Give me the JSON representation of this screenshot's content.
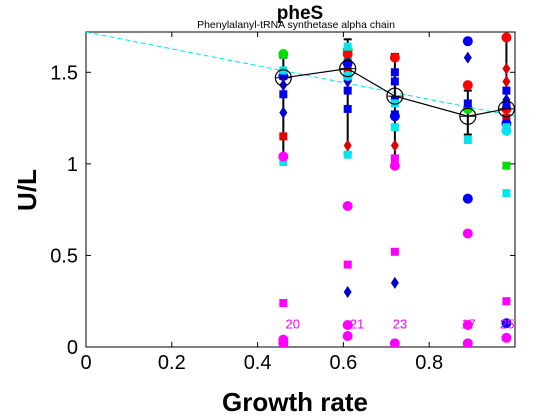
{
  "chart_data": {
    "type": "scatter",
    "title": "pheS",
    "subtitle": "Phenylalanyl-tRNA synthetase alpha chain",
    "xlabel": "Growth rate",
    "ylabel": "U/L",
    "xlim": [
      0,
      1.0
    ],
    "ylim": [
      0,
      1.72
    ],
    "x_ticks": [
      0,
      0.2,
      0.4,
      0.6,
      0.8
    ],
    "x_tick_labels": [
      "0",
      "0.2",
      "0.4",
      "0.6",
      "0.8"
    ],
    "y_ticks": [
      0,
      0.5,
      1,
      1.5
    ],
    "y_tick_labels": [
      "0",
      "0.5",
      "1",
      "1.5"
    ],
    "grid": false,
    "legend": "none",
    "trend_line": {
      "color": "#00e5ee",
      "style": "dashed",
      "points": [
        [
          0,
          1.72
        ],
        [
          1.0,
          1.26
        ]
      ]
    },
    "mean_line": {
      "color": "#000000",
      "x": [
        0.46,
        0.61,
        0.72,
        0.89,
        0.98
      ],
      "y": [
        1.47,
        1.52,
        1.37,
        1.26,
        1.3
      ],
      "error_low": [
        1.04,
        1.06,
        1.04,
        1.16,
        1.18
      ],
      "error_high": [
        1.58,
        1.68,
        1.6,
        1.4,
        1.7
      ]
    },
    "point_labels": [
      {
        "text": "20",
        "x": 0.465,
        "y": 0.1
      },
      {
        "text": "21",
        "x": 0.615,
        "y": 0.1
      },
      {
        "text": "23",
        "x": 0.715,
        "y": 0.1
      },
      {
        "text": "17",
        "x": 0.875,
        "y": 0.1
      },
      {
        "text": "25",
        "x": 0.965,
        "y": 0.1
      }
    ],
    "series": [
      {
        "marker": "circle",
        "color": "#00dd00",
        "points": [
          [
            0.46,
            1.6
          ],
          [
            0.61,
            1.62
          ],
          [
            0.89,
            1.3
          ]
        ]
      },
      {
        "marker": "square",
        "color": "#00dd00",
        "points": [
          [
            0.61,
            1.58
          ],
          [
            0.98,
            0.99
          ]
        ]
      },
      {
        "marker": "circle",
        "color": "#ff0000",
        "points": [
          [
            0.61,
            1.6
          ],
          [
            0.72,
            1.58
          ],
          [
            0.89,
            1.43
          ],
          [
            0.98,
            1.69
          ],
          [
            0.98,
            1.3
          ]
        ]
      },
      {
        "marker": "square",
        "color": "#dd0000",
        "points": [
          [
            0.46,
            1.15
          ],
          [
            0.61,
            1.52
          ],
          [
            0.98,
            1.25
          ]
        ]
      },
      {
        "marker": "diamond",
        "color": "#dd0000",
        "points": [
          [
            0.61,
            1.1
          ],
          [
            0.72,
            1.1
          ],
          [
            0.98,
            1.52
          ],
          [
            0.98,
            1.45
          ]
        ]
      },
      {
        "marker": "circle",
        "color": "#0000ff",
        "points": [
          [
            0.46,
            1.48
          ],
          [
            0.61,
            1.55
          ],
          [
            0.72,
            1.26
          ],
          [
            0.89,
            1.67
          ],
          [
            0.89,
            0.81
          ],
          [
            0.98,
            0.13
          ],
          [
            0.98,
            1.22
          ]
        ]
      },
      {
        "marker": "square",
        "color": "#0000ee",
        "points": [
          [
            0.46,
            1.48
          ],
          [
            0.46,
            1.38
          ],
          [
            0.61,
            1.47
          ],
          [
            0.61,
            1.4
          ],
          [
            0.61,
            1.3
          ],
          [
            0.72,
            1.5
          ],
          [
            0.72,
            1.45
          ],
          [
            0.72,
            1.35
          ],
          [
            0.72,
            1.27
          ],
          [
            0.89,
            1.33
          ],
          [
            0.98,
            1.4
          ],
          [
            0.98,
            1.32
          ]
        ]
      },
      {
        "marker": "diamond",
        "color": "#0000cc",
        "points": [
          [
            0.46,
            1.43
          ],
          [
            0.46,
            1.28
          ],
          [
            0.61,
            1.45
          ],
          [
            0.61,
            0.3
          ],
          [
            0.72,
            0.35
          ],
          [
            0.89,
            1.58
          ],
          [
            0.98,
            1.35
          ]
        ]
      },
      {
        "marker": "square",
        "color": "#00e5ee",
        "points": [
          [
            0.46,
            1.51
          ],
          [
            0.46,
            1.01
          ],
          [
            0.61,
            1.64
          ],
          [
            0.61,
            1.05
          ],
          [
            0.72,
            1.33
          ],
          [
            0.72,
            1.2
          ],
          [
            0.89,
            1.13
          ],
          [
            0.98,
            0.84
          ],
          [
            0.98,
            1.2
          ]
        ]
      },
      {
        "marker": "circle",
        "color": "#00e5ee",
        "points": [
          [
            0.61,
            1.48
          ],
          [
            0.98,
            1.18
          ]
        ]
      },
      {
        "marker": "circle",
        "color": "#ff00ff",
        "points": [
          [
            0.46,
            1.04
          ],
          [
            0.46,
            0.04
          ],
          [
            0.46,
            0.02
          ],
          [
            0.61,
            0.77
          ],
          [
            0.61,
            0.12
          ],
          [
            0.61,
            0.06
          ],
          [
            0.72,
            0.99
          ],
          [
            0.72,
            0.02
          ],
          [
            0.89,
            0.62
          ],
          [
            0.89,
            0.12
          ],
          [
            0.89,
            0.02
          ],
          [
            0.98,
            0.05
          ]
        ]
      },
      {
        "marker": "square",
        "color": "#ff00ff",
        "points": [
          [
            0.46,
            0.24
          ],
          [
            0.61,
            0.45
          ],
          [
            0.72,
            0.52
          ],
          [
            0.72,
            1.03
          ],
          [
            0.98,
            0.25
          ]
        ]
      }
    ]
  }
}
